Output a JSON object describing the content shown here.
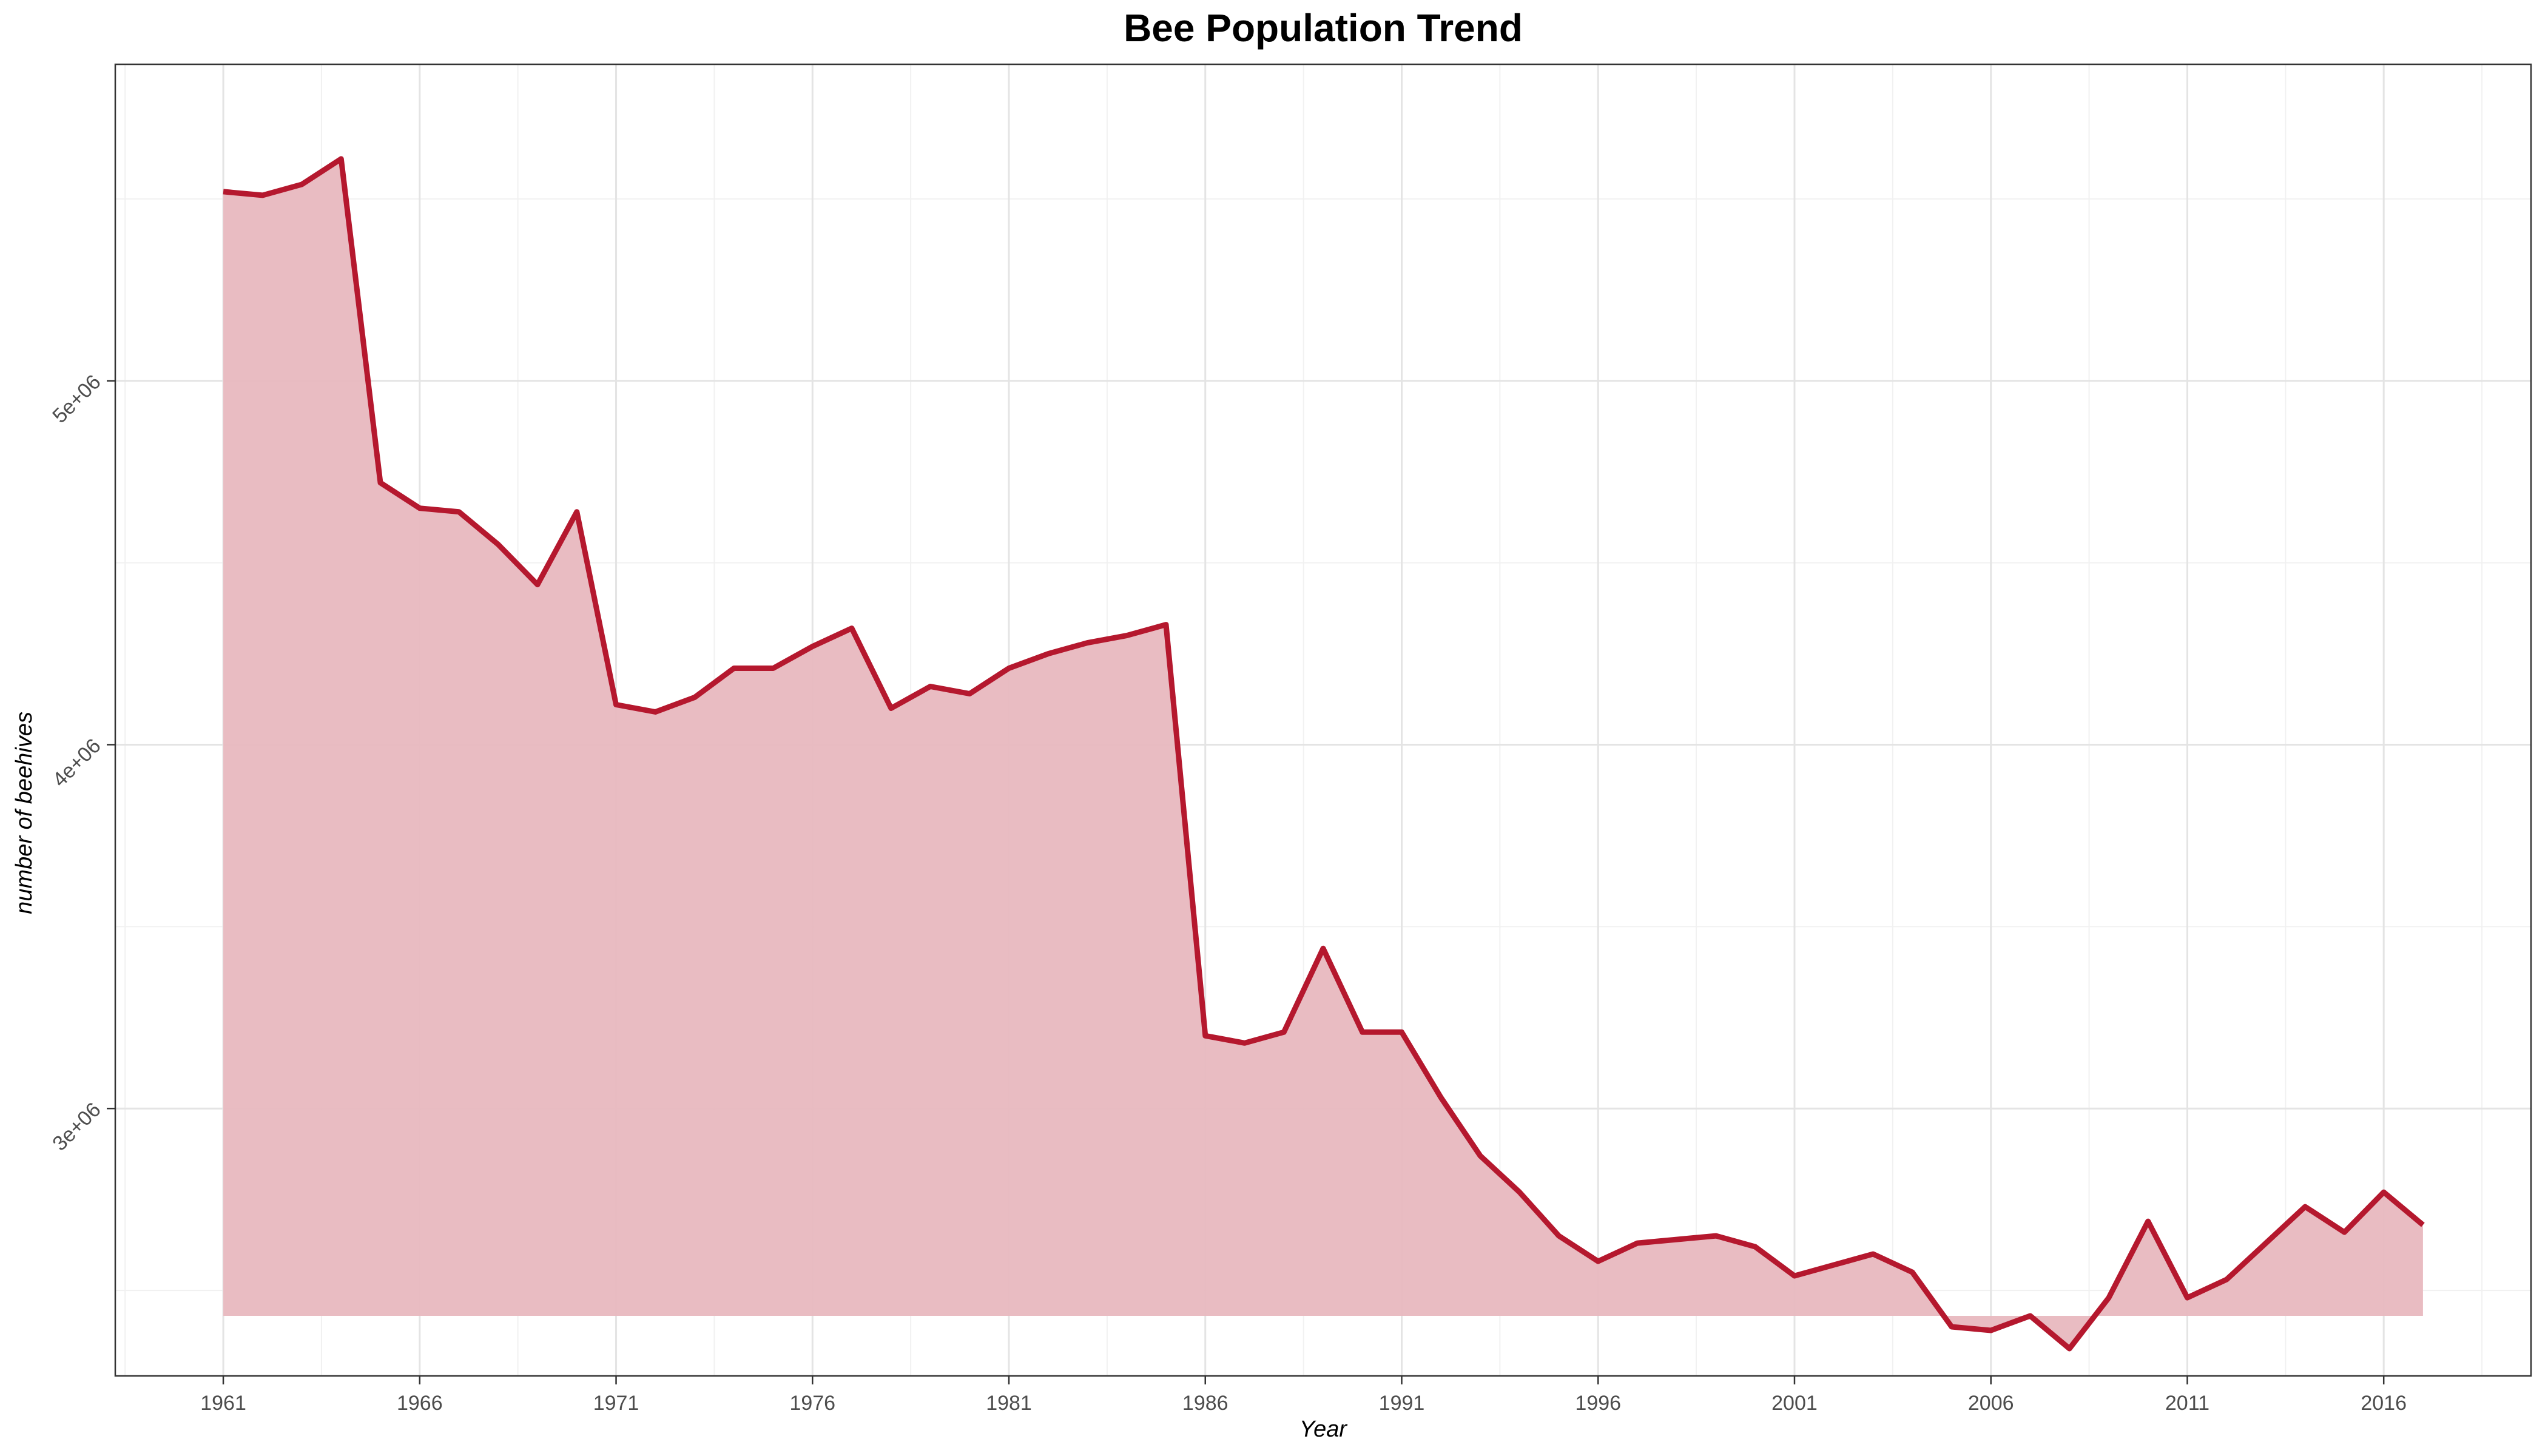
{
  "chart_data": {
    "type": "area",
    "title": "Bee Population Trend",
    "xlabel": "Year",
    "ylabel": "number of beehives",
    "x_ticks": [
      1961,
      1966,
      1971,
      1976,
      1981,
      1986,
      1991,
      1996,
      2001,
      2006,
      2011,
      2016
    ],
    "x_tick_labels": [
      "1961",
      "1966",
      "1971",
      "1976",
      "1981",
      "1986",
      "1991",
      "1996",
      "2001",
      "2006",
      "2011",
      "2016"
    ],
    "y_ticks": [
      3000000,
      4000000,
      5000000
    ],
    "y_tick_labels": [
      "3e+06",
      "4e+06",
      "5e+06"
    ],
    "xlim": [
      1958.25,
      2019.75
    ],
    "ylim": [
      2265000,
      5870000
    ],
    "area_baseline": 2430000,
    "grid": true,
    "colors": {
      "line": "#b5182e",
      "fill": "#e8b8bf"
    },
    "x": [
      1961,
      1962,
      1963,
      1964,
      1965,
      1966,
      1967,
      1968,
      1969,
      1970,
      1971,
      1972,
      1973,
      1974,
      1975,
      1976,
      1977,
      1978,
      1979,
      1980,
      1981,
      1982,
      1983,
      1984,
      1985,
      1986,
      1987,
      1988,
      1989,
      1990,
      1991,
      1992,
      1993,
      1994,
      1995,
      1996,
      1997,
      1998,
      1999,
      2000,
      2001,
      2002,
      2003,
      2004,
      2005,
      2006,
      2007,
      2008,
      2009,
      2010,
      2011,
      2012,
      2013,
      2014,
      2015,
      2016,
      2017
    ],
    "values": [
      5520000,
      5510000,
      5540000,
      5610000,
      4720000,
      4650000,
      4640000,
      4550000,
      4440000,
      4640000,
      4110000,
      4090000,
      4130000,
      4210000,
      4210000,
      4270000,
      4320000,
      4100000,
      4160000,
      4140000,
      4210000,
      4250000,
      4280000,
      4300000,
      4330000,
      3200000,
      3180000,
      3210000,
      3440000,
      3210000,
      3210000,
      3030000,
      2870000,
      2770000,
      2650000,
      2580000,
      2630000,
      2640000,
      2650000,
      2620000,
      2540000,
      2570000,
      2600000,
      2550000,
      2400000,
      2390000,
      2430000,
      2340000,
      2480000,
      2690000,
      2480000,
      2530000,
      2630000,
      2730000,
      2660000,
      2770000,
      2680000
    ]
  }
}
